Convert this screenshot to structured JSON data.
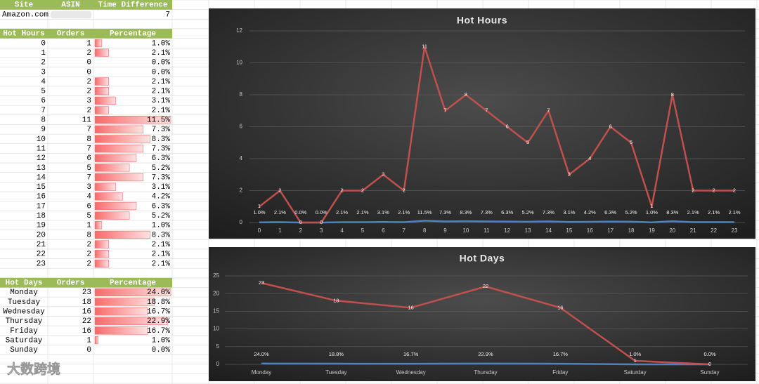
{
  "sheet": {
    "header": {
      "columns": [
        "Site",
        "ASIN",
        "Time Difference"
      ],
      "site": "Amazon.com",
      "time_difference": 7
    },
    "hours_table": {
      "columns": [
        "Hot Hours",
        "Orders",
        "Percentage"
      ],
      "rows": [
        [
          0,
          1,
          "1.0%"
        ],
        [
          1,
          2,
          "2.1%"
        ],
        [
          2,
          0,
          "0.0%"
        ],
        [
          3,
          0,
          "0.0%"
        ],
        [
          4,
          2,
          "2.1%"
        ],
        [
          5,
          2,
          "2.1%"
        ],
        [
          6,
          3,
          "3.1%"
        ],
        [
          7,
          2,
          "2.1%"
        ],
        [
          8,
          11,
          "11.5%"
        ],
        [
          9,
          7,
          "7.3%"
        ],
        [
          10,
          8,
          "8.3%"
        ],
        [
          11,
          7,
          "7.3%"
        ],
        [
          12,
          6,
          "6.3%"
        ],
        [
          13,
          5,
          "5.2%"
        ],
        [
          14,
          7,
          "7.3%"
        ],
        [
          15,
          3,
          "3.1%"
        ],
        [
          16,
          4,
          "4.2%"
        ],
        [
          17,
          6,
          "6.3%"
        ],
        [
          18,
          5,
          "5.2%"
        ],
        [
          19,
          1,
          "1.0%"
        ],
        [
          20,
          8,
          "8.3%"
        ],
        [
          21,
          2,
          "2.1%"
        ],
        [
          22,
          2,
          "2.1%"
        ],
        [
          23,
          2,
          "2.1%"
        ]
      ]
    },
    "days_table": {
      "columns": [
        "Hot Days",
        "Orders",
        "Percentage"
      ],
      "rows": [
        [
          "Monday",
          23,
          "24.0%"
        ],
        [
          "Tuesday",
          18,
          "18.8%"
        ],
        [
          "Wednesday",
          16,
          "16.7%"
        ],
        [
          "Thursday",
          22,
          "22.9%"
        ],
        [
          "Friday",
          16,
          "16.7%"
        ],
        [
          "Saturday",
          1,
          "1.0%"
        ],
        [
          "Sunday",
          0,
          "0.0%"
        ]
      ]
    },
    "watermark": "大数跨境"
  },
  "chart_data": [
    {
      "type": "line",
      "title": "Hot Hours",
      "categories": [
        0,
        1,
        2,
        3,
        4,
        5,
        6,
        7,
        8,
        9,
        10,
        11,
        12,
        13,
        14,
        15,
        16,
        17,
        18,
        19,
        20,
        21,
        22,
        23
      ],
      "series": [
        {
          "color": "#c0504d",
          "values": [
            1,
            2,
            0,
            0,
            2,
            2,
            3,
            2,
            11,
            7,
            8,
            7,
            6,
            5,
            7,
            3,
            4,
            6,
            5,
            1,
            8,
            2,
            2,
            2
          ]
        },
        {
          "color": "#4f81bd",
          "values": [
            0.01,
            0.021,
            0,
            0,
            0.021,
            0.021,
            0.031,
            0.021,
            0.115,
            0.073,
            0.083,
            0.073,
            0.063,
            0.052,
            0.073,
            0.031,
            0.042,
            0.063,
            0.052,
            0.01,
            0.083,
            0.021,
            0.021,
            0.021
          ],
          "value_labels": [
            "1.0%",
            "2.1%",
            "0.0%",
            "0.0%",
            "2.1%",
            "2.1%",
            "3.1%",
            "2.1%",
            "11.5%",
            "7.3%",
            "8.3%",
            "7.3%",
            "6.3%",
            "5.2%",
            "7.3%",
            "3.1%",
            "4.2%",
            "6.3%",
            "5.2%",
            "1.0%",
            "8.3%",
            "2.1%",
            "2.1%",
            "2.1%"
          ]
        }
      ],
      "ylim": [
        0,
        12
      ],
      "yticks": [
        0,
        2,
        4,
        6,
        8,
        10,
        12
      ],
      "grid": true
    },
    {
      "type": "line",
      "title": "Hot Days",
      "categories": [
        "Monday",
        "Tuesday",
        "Wednesday",
        "Thursday",
        "Friday",
        "Saturday",
        "Sunday"
      ],
      "series": [
        {
          "color": "#c0504d",
          "values": [
            23,
            18,
            16,
            22,
            16,
            1,
            0
          ]
        },
        {
          "color": "#4f81bd",
          "values": [
            0.24,
            0.188,
            0.167,
            0.229,
            0.167,
            0.01,
            0
          ],
          "value_labels": [
            "24.0%",
            "18.8%",
            "16.7%",
            "22.9%",
            "16.7%",
            "1.0%",
            "0.0%"
          ]
        }
      ],
      "ylim": [
        0,
        25
      ],
      "yticks": [
        0,
        5,
        10,
        15,
        20,
        25
      ],
      "grid": true
    }
  ]
}
